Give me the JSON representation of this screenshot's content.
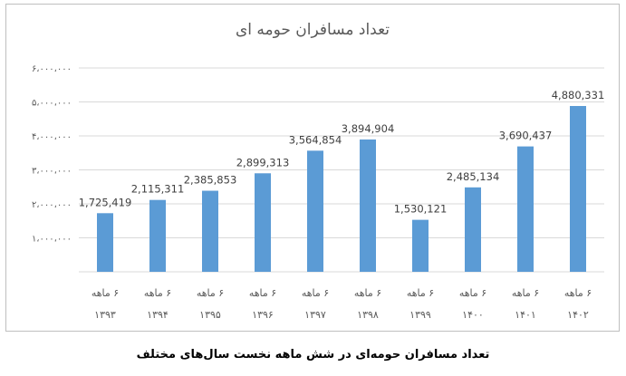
{
  "chart_data": {
    "type": "bar",
    "title": "تعداد مسافران حومه ای",
    "categories": [
      [
        "۶ ماهه",
        "۱۳۹۳"
      ],
      [
        "۶ ماهه",
        "۱۳۹۴"
      ],
      [
        "۶ ماهه",
        "۱۳۹۵"
      ],
      [
        "۶ ماهه",
        "۱۳۹۶"
      ],
      [
        "۶ ماهه",
        "۱۳۹۷"
      ],
      [
        "۶ ماهه",
        "۱۳۹۸"
      ],
      [
        "۶ ماهه",
        "۱۳۹۹"
      ],
      [
        "۶ ماهه",
        "۱۴۰۰"
      ],
      [
        "۶ ماهه",
        "۱۴۰۱"
      ],
      [
        "۶ ماهه",
        "۱۴۰۲"
      ]
    ],
    "values": [
      1725419,
      2115311,
      2385853,
      2899313,
      3564854,
      3894904,
      1530121,
      2485134,
      3690437,
      4880331
    ],
    "data_labels": [
      "1,725,419",
      "2,115,311",
      "2,385,853",
      "2,899,313",
      "3,564,854",
      "3,894,904",
      "1,530,121",
      "2,485,134",
      "3,690,437",
      "4,880,331"
    ],
    "yticks": [
      {
        "value": 1000000,
        "label": "۱،۰۰۰،۰۰۰"
      },
      {
        "value": 2000000,
        "label": "۲،۰۰۰،۰۰۰"
      },
      {
        "value": 3000000,
        "label": "۳،۰۰۰،۰۰۰"
      },
      {
        "value": 4000000,
        "label": "۴،۰۰۰،۰۰۰"
      },
      {
        "value": 5000000,
        "label": "۵،۰۰۰،۰۰۰"
      },
      {
        "value": 6000000,
        "label": "۶،۰۰۰،۰۰۰"
      }
    ],
    "ylim": [
      0,
      6000000
    ],
    "grid": true,
    "bar_color": "#5b9bd5",
    "grid_color": "#d9d9d9"
  },
  "caption": "تعداد مسافران حومه‌ای در شش ماهه نخست سال‌های مختلف"
}
